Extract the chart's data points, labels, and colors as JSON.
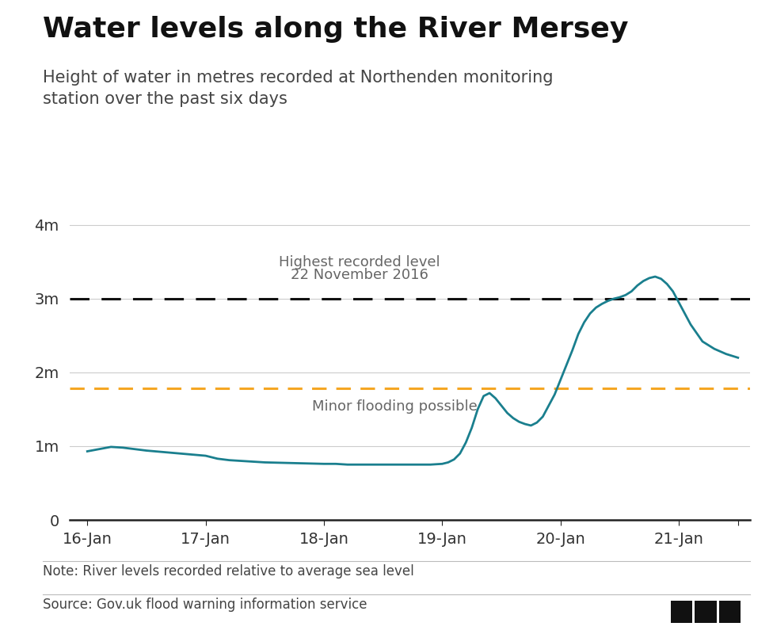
{
  "title": "Water levels along the River Mersey",
  "subtitle": "Height of water in metres recorded at Northenden monitoring\nstation over the past six days",
  "note": "Note: River levels recorded relative to average sea level",
  "source": "Source: Gov.uk flood warning information service",
  "line_color": "#1a7f8e",
  "line_width": 2.0,
  "highest_level": 3.0,
  "highest_label_line1": "Highest recorded level",
  "highest_label_line2": "22 November 2016",
  "flood_level": 1.78,
  "flood_label": "Minor flooding possible",
  "ylim": [
    0,
    4.3
  ],
  "yticks": [
    0,
    1,
    2,
    3,
    4
  ],
  "ytick_labels": [
    "0",
    "1m",
    "2m",
    "3m",
    "4m"
  ],
  "x_values": [
    0.0,
    0.1,
    0.2,
    0.3,
    0.4,
    0.5,
    1.0,
    1.1,
    1.2,
    1.3,
    1.4,
    1.5,
    2.0,
    2.1,
    2.2,
    2.3,
    2.4,
    2.5,
    2.6,
    2.7,
    2.8,
    2.9,
    3.0,
    3.05,
    3.1,
    3.15,
    3.2,
    3.25,
    3.3,
    3.35,
    3.4,
    3.45,
    3.5,
    3.55,
    3.6,
    3.65,
    3.7,
    3.75,
    3.8,
    3.85,
    3.9,
    3.95,
    4.0,
    4.05,
    4.1,
    4.15,
    4.2,
    4.25,
    4.3,
    4.35,
    4.4,
    4.45,
    4.5,
    4.55,
    4.6,
    4.65,
    4.7,
    4.75,
    4.8,
    4.85,
    4.9,
    4.95,
    5.0,
    5.1,
    5.2,
    5.3,
    5.4,
    5.5
  ],
  "y_values": [
    0.93,
    0.96,
    0.99,
    0.98,
    0.96,
    0.94,
    0.87,
    0.83,
    0.81,
    0.8,
    0.79,
    0.78,
    0.76,
    0.76,
    0.75,
    0.75,
    0.75,
    0.75,
    0.75,
    0.75,
    0.75,
    0.75,
    0.76,
    0.78,
    0.82,
    0.9,
    1.05,
    1.25,
    1.5,
    1.68,
    1.72,
    1.65,
    1.55,
    1.45,
    1.38,
    1.33,
    1.3,
    1.28,
    1.32,
    1.4,
    1.55,
    1.7,
    1.9,
    2.1,
    2.3,
    2.52,
    2.68,
    2.8,
    2.88,
    2.93,
    2.97,
    3.0,
    3.02,
    3.05,
    3.1,
    3.18,
    3.24,
    3.28,
    3.3,
    3.27,
    3.2,
    3.1,
    2.95,
    2.65,
    2.42,
    2.32,
    2.25,
    2.2
  ],
  "xtick_positions": [
    0,
    1,
    2,
    3,
    4,
    5,
    5.5
  ],
  "xtick_labels": [
    "16-Jan",
    "17-Jan",
    "18-Jan",
    "19-Jan",
    "20-Jan",
    "21-Jan",
    ""
  ],
  "xlim": [
    -0.15,
    5.6
  ],
  "background_color": "#ffffff",
  "grid_color": "#cccccc",
  "axis_color": "#222222",
  "text_color": "#333333",
  "annotation_color": "#666666",
  "dashed_black": "#111111",
  "dashed_orange": "#f5a623",
  "title_fontsize": 26,
  "subtitle_fontsize": 15,
  "tick_fontsize": 14,
  "annot_fontsize": 13,
  "note_fontsize": 12
}
